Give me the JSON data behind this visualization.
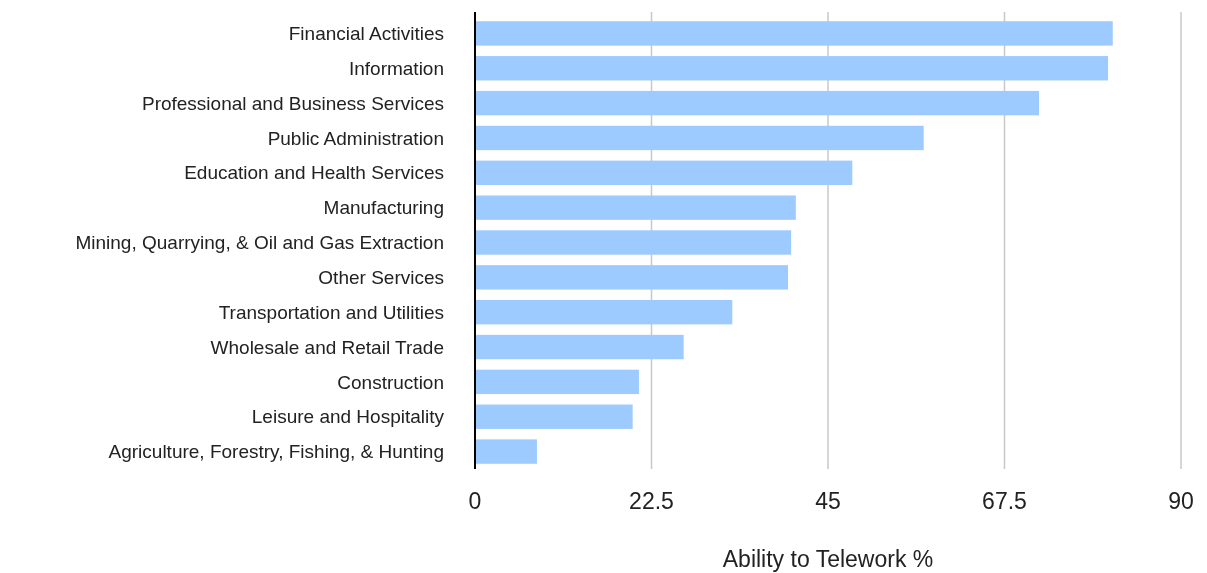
{
  "chart_data": {
    "type": "bar",
    "orientation": "horizontal",
    "xlabel": "Ability to Telework %",
    "categories": [
      "Financial Activities",
      "Information",
      "Professional and Business Services",
      "Public Administration",
      "Education and Health Services",
      "Manufacturing",
      "Mining, Quarrying, & Oil and Gas Extraction",
      "Other Services",
      "Transportation and Utilities",
      "Wholesale and Retail Trade",
      "Construction",
      "Leisure and Hospitality",
      "Agriculture, Forestry, Fishing, & Hunting"
    ],
    "values": [
      81.3,
      80.7,
      71.9,
      57.2,
      48.1,
      40.9,
      40.3,
      39.9,
      32.8,
      26.6,
      20.9,
      20.1,
      7.9
    ],
    "color": "#9ecbff",
    "xlim": [
      0,
      90
    ],
    "xticks": [
      0,
      22.5,
      45,
      67.5,
      90
    ],
    "grid": "x"
  }
}
